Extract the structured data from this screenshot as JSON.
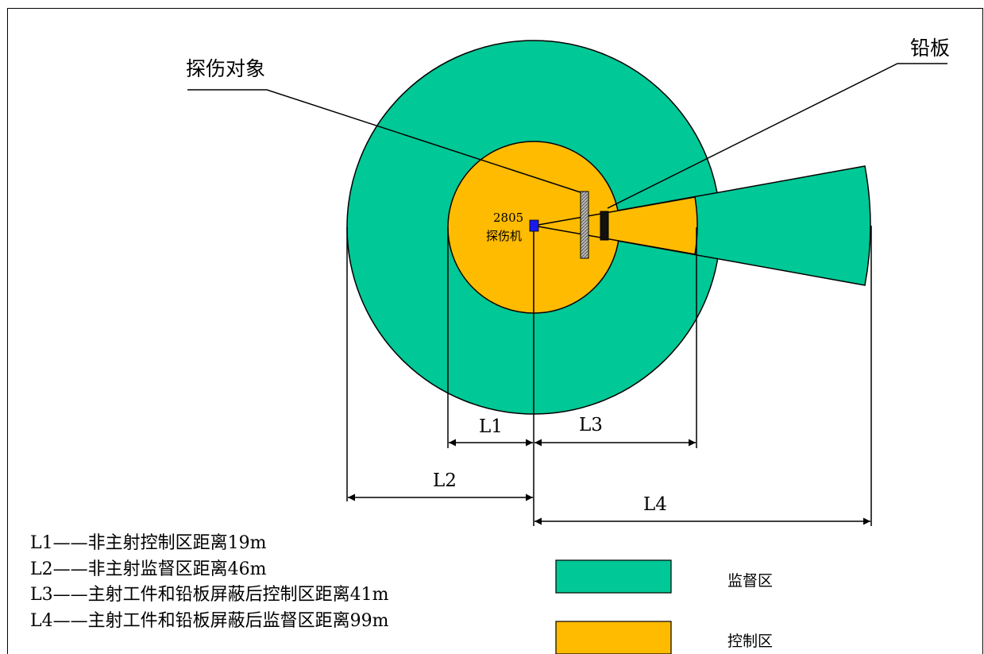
{
  "labels": {
    "target": "探伤对象",
    "lead_plate": "铅板",
    "machine_model": "2805",
    "machine_name": "探伤机"
  },
  "dimensions": {
    "l1": "L1",
    "l2": "L2",
    "l3": "L3",
    "l4": "L4"
  },
  "notes": [
    "L1——非主射控制区距离19m",
    "L2——非主射监督区距离46m",
    "L3——主射工件和铅板屏蔽后控制区距离41m",
    "L4——主射工件和铅板屏蔽后监督区距离99m"
  ],
  "legend": [
    {
      "label": "监督区",
      "color": "#00c896"
    },
    {
      "label": "控制区",
      "color": "#ffbb00"
    }
  ],
  "colors": {
    "supervision": "#00c896",
    "control": "#ffbb00",
    "machine": "#1a1aee",
    "stroke": "#000000"
  }
}
